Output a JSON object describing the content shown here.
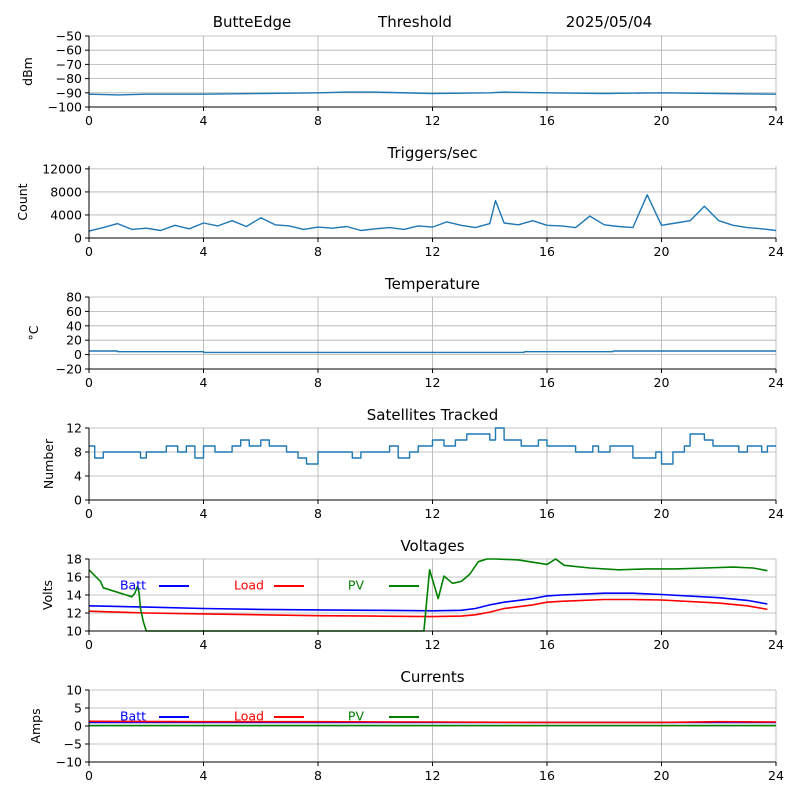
{
  "header": {
    "station": "ButteEdge",
    "mode": "Threshold",
    "date": "2025/05/04"
  },
  "colors": {
    "series_default": "#1f77b4",
    "batt": "#0000ff",
    "load": "#ff0000",
    "pv": "#008000",
    "grid": "#b0b0b0",
    "axis": "#000000"
  },
  "chart_data": [
    {
      "id": "threshold",
      "type": "line",
      "title": "",
      "ylabel": "dBm",
      "xlim": [
        0,
        24
      ],
      "xticks": [
        0,
        4,
        8,
        12,
        16,
        20,
        24
      ],
      "ylim": [
        -100,
        -50
      ],
      "yticks": [
        -100,
        -90,
        -80,
        -70,
        -60,
        -50
      ],
      "grid": true,
      "series": [
        {
          "x": [
            0,
            1,
            2,
            4,
            6,
            8,
            9,
            10,
            12,
            14,
            14.5,
            16,
            18,
            20,
            22,
            24
          ],
          "y": [
            -91,
            -91.5,
            -91,
            -91,
            -90.5,
            -90,
            -89.5,
            -89.5,
            -90.5,
            -90,
            -89.5,
            -90,
            -90.5,
            -90,
            -90.5,
            -91
          ]
        }
      ]
    },
    {
      "id": "triggers",
      "type": "line",
      "title": "Triggers/sec",
      "ylabel": "Count",
      "xlim": [
        0,
        24
      ],
      "xticks": [
        0,
        4,
        8,
        12,
        16,
        20,
        24
      ],
      "ylim": [
        0,
        12500
      ],
      "yticks": [
        0,
        4000,
        8000,
        12000
      ],
      "grid": true,
      "series": [
        {
          "x": [
            0,
            0.5,
            1,
            1.5,
            2,
            2.5,
            3,
            3.5,
            4,
            4.5,
            5,
            5.5,
            6,
            6.5,
            7,
            7.5,
            8,
            8.5,
            9,
            9.5,
            10,
            10.5,
            11,
            11.5,
            12,
            12.5,
            13,
            13.5,
            14,
            14.2,
            14.5,
            15,
            15.5,
            16,
            16.5,
            17,
            17.5,
            18,
            18.5,
            19,
            19.5,
            20,
            20.5,
            21,
            21.5,
            22,
            22.5,
            23,
            23.5,
            24
          ],
          "y": [
            1200,
            1800,
            2500,
            1500,
            1700,
            1300,
            2200,
            1600,
            2600,
            2100,
            3000,
            2000,
            3500,
            2300,
            2100,
            1500,
            1900,
            1700,
            2000,
            1300,
            1600,
            1800,
            1500,
            2100,
            1900,
            2800,
            2200,
            1800,
            2500,
            6500,
            2600,
            2300,
            3000,
            2200,
            2100,
            1800,
            3800,
            2300,
            2000,
            1800,
            7500,
            2200,
            2600,
            3000,
            5500,
            3000,
            2200,
            1800,
            1600,
            1300
          ]
        }
      ]
    },
    {
      "id": "temperature",
      "type": "line",
      "title": "Temperature",
      "ylabel": "°C",
      "xlim": [
        0,
        24
      ],
      "xticks": [
        0,
        4,
        8,
        12,
        16,
        20,
        24
      ],
      "ylim": [
        -20,
        80
      ],
      "yticks": [
        -20,
        0,
        20,
        40,
        60,
        80
      ],
      "grid": true,
      "series": [
        {
          "x": [
            0,
            1,
            1.01,
            4,
            4.01,
            15.2,
            15.21,
            18.3,
            18.31,
            24
          ],
          "y": [
            5,
            5,
            4,
            4,
            3,
            3,
            4,
            4,
            5,
            5
          ]
        }
      ]
    },
    {
      "id": "satellites",
      "type": "line",
      "title": "Satellites Tracked",
      "ylabel": "Number",
      "xlim": [
        0,
        24
      ],
      "xticks": [
        0,
        4,
        8,
        12,
        16,
        20,
        24
      ],
      "ylim": [
        0,
        12
      ],
      "yticks": [
        0,
        4,
        8,
        12
      ],
      "grid": true,
      "step": true,
      "series": [
        {
          "x": [
            0,
            0.2,
            0.5,
            1.5,
            1.8,
            2,
            2.7,
            2.9,
            3.1,
            3.4,
            3.7,
            4,
            4.4,
            5,
            5.3,
            5.6,
            6,
            6.3,
            6.9,
            7.3,
            7.5,
            7.6,
            8,
            8.9,
            9.2,
            9.5,
            10.5,
            10.8,
            11.2,
            11.5,
            12,
            12.4,
            12.8,
            13.2,
            14,
            14.2,
            14.5,
            15.1,
            15.7,
            16,
            16.6,
            17,
            17.6,
            17.8,
            18.2,
            19,
            19.6,
            19.8,
            20,
            20.4,
            20.8,
            21,
            21.5,
            21.8,
            22.2,
            22.7,
            23,
            23.5,
            23.7,
            24
          ],
          "y": [
            9,
            7,
            8,
            8,
            7,
            8,
            9,
            9,
            8,
            9,
            7,
            9,
            8,
            9,
            10,
            9,
            10,
            9,
            8,
            7,
            7,
            6,
            8,
            8,
            7,
            8,
            9,
            7,
            8,
            9,
            10,
            9,
            10,
            11,
            10,
            12,
            10,
            9,
            10,
            9,
            9,
            8,
            9,
            8,
            9,
            7,
            7,
            8,
            6,
            8,
            9,
            11,
            10,
            9,
            9,
            8,
            9,
            8,
            9,
            9
          ]
        }
      ]
    },
    {
      "id": "voltages",
      "type": "line",
      "title": "Voltages",
      "ylabel": "Volts",
      "xlim": [
        0,
        24
      ],
      "xticks": [
        0,
        4,
        8,
        12,
        16,
        20,
        24
      ],
      "ylim": [
        10,
        18
      ],
      "yticks": [
        10,
        12,
        14,
        16,
        18
      ],
      "grid": true,
      "legend": "top-left",
      "series": [
        {
          "name": "Batt",
          "x": [
            0,
            2,
            4,
            6,
            8,
            10,
            12,
            13,
            13.5,
            14,
            14.5,
            15,
            15.5,
            16,
            16.5,
            18,
            19,
            20,
            22,
            23,
            23.7
          ],
          "y": [
            12.8,
            12.65,
            12.5,
            12.4,
            12.35,
            12.3,
            12.25,
            12.3,
            12.5,
            12.9,
            13.2,
            13.4,
            13.6,
            13.9,
            14.0,
            14.2,
            14.2,
            14.05,
            13.7,
            13.4,
            13.0
          ]
        },
        {
          "name": "Load",
          "x": [
            0,
            2,
            4,
            6,
            8,
            10,
            12,
            13,
            13.5,
            14,
            14.5,
            15,
            15.5,
            16,
            16.5,
            18,
            19,
            20,
            22,
            23,
            23.7
          ],
          "y": [
            12.2,
            12.0,
            11.9,
            11.8,
            11.7,
            11.65,
            11.6,
            11.65,
            11.8,
            12.1,
            12.5,
            12.7,
            12.9,
            13.2,
            13.3,
            13.5,
            13.5,
            13.45,
            13.1,
            12.8,
            12.4
          ]
        },
        {
          "name": "PV",
          "x": [
            0,
            0.4,
            0.5,
            1.5,
            1.6,
            1.7,
            1.75,
            1.8,
            1.9,
            2.0,
            11.7,
            11.9,
            12.2,
            12.4,
            12.7,
            13.0,
            13.3,
            13.6,
            13.9,
            14.2,
            15,
            16,
            16.3,
            16.6,
            17.5,
            18.5,
            19.5,
            20.5,
            21.5,
            22.5,
            23.2,
            23.7
          ],
          "y": [
            16.8,
            15.5,
            14.8,
            13.8,
            14.2,
            15.0,
            14.2,
            12.5,
            11.0,
            10.0,
            10.0,
            16.8,
            13.6,
            16.1,
            15.3,
            15.5,
            16.3,
            17.7,
            18.0,
            18.0,
            17.9,
            17.4,
            18.2,
            17.3,
            17.0,
            16.8,
            16.9,
            16.9,
            17.0,
            17.1,
            17.0,
            16.7
          ]
        }
      ]
    },
    {
      "id": "currents",
      "type": "line",
      "title": "Currents",
      "ylabel": "Amps",
      "xlim": [
        0,
        24
      ],
      "xticks": [
        0,
        4,
        8,
        12,
        16,
        20,
        24
      ],
      "ylim": [
        -10,
        10
      ],
      "yticks": [
        -10,
        -5,
        0,
        5,
        10
      ],
      "grid": true,
      "legend": "top-left",
      "series": [
        {
          "name": "Batt",
          "x": [
            0,
            24
          ],
          "y": [
            1.0,
            1.0
          ]
        },
        {
          "name": "Load",
          "x": [
            0,
            4,
            8,
            12,
            16,
            20,
            22,
            24
          ],
          "y": [
            1.3,
            1.2,
            1.2,
            1.1,
            1.0,
            1.0,
            1.2,
            1.1
          ]
        },
        {
          "name": "PV",
          "x": [
            0,
            24
          ],
          "y": [
            0.1,
            0.1
          ]
        }
      ]
    }
  ]
}
